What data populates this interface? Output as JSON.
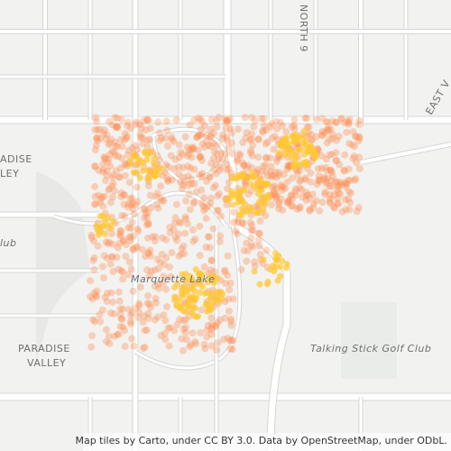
{
  "map": {
    "labels": {
      "paradise_valley_top": [
        "ADISE",
        "LEY"
      ],
      "club_left": "lub",
      "north": "NORTH 9",
      "east": "EAST V",
      "lake": "Marquette Lake",
      "golf": "Talking Stick Golf Club",
      "paradise_valley": [
        "PARADISE",
        "VALLEY"
      ]
    },
    "attribution": "Map tiles by Carto, under CC BY 3.0. Data by OpenStreetMap, under ODbL."
  }
}
